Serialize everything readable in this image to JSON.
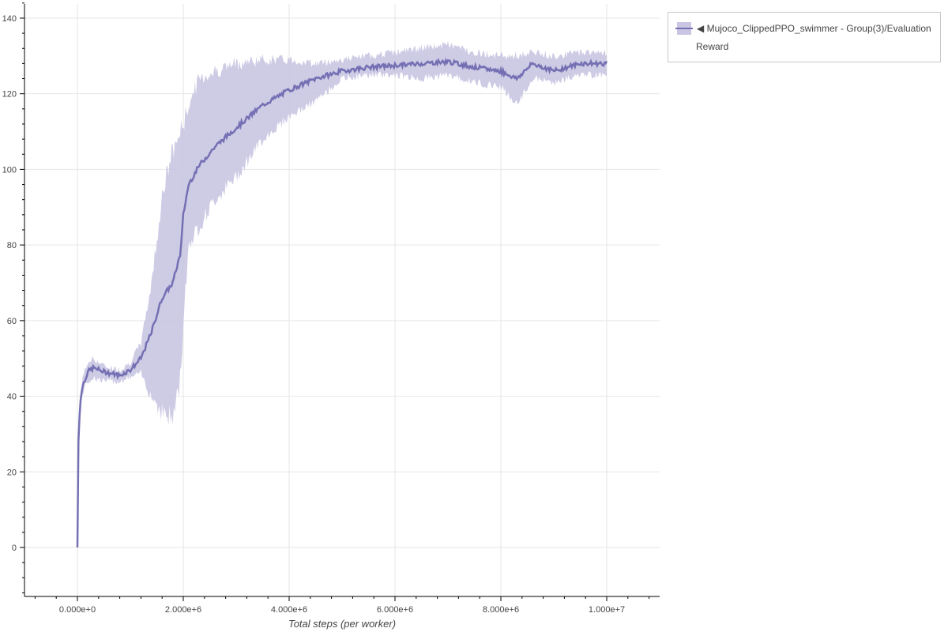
{
  "chart_data": {
    "type": "line",
    "title": "",
    "xlabel": "Total steps (per worker)",
    "ylabel": "",
    "xlim": [
      -1000000,
      11000000
    ],
    "ylim": [
      -13,
      144
    ],
    "grid": true,
    "legend_placement": "outside-top-right",
    "x_ticks": [
      0,
      2000000,
      4000000,
      6000000,
      8000000,
      10000000
    ],
    "x_tick_labels": [
      "0.000e+0",
      "2.000e+6",
      "4.000e+6",
      "6.000e+6",
      "8.000e+6",
      "1.000e+7"
    ],
    "y_ticks": [
      0,
      20,
      40,
      60,
      80,
      100,
      120,
      140
    ],
    "y_tick_labels": [
      "0",
      "20",
      "40",
      "60",
      "80",
      "100",
      "120",
      "140"
    ],
    "series": [
      {
        "name": "Mujoco_ClippedPPO_swimmer - Group(3)/Evaluation Reward",
        "color": "#7570b3",
        "band_color": "#c9c5e2",
        "x": [
          0,
          20000,
          50000,
          100000,
          200000,
          300000,
          500000,
          800000,
          1000000,
          1200000,
          1400000,
          1600000,
          1800000,
          1950000,
          2000000,
          2100000,
          2300000,
          2600000,
          3000000,
          3500000,
          4000000,
          4500000,
          5000000,
          5500000,
          6000000,
          6500000,
          7000000,
          7500000,
          8000000,
          8300000,
          8600000,
          9000000,
          9500000,
          10000000
        ],
        "mean": [
          0,
          28,
          38,
          43,
          46.5,
          47.5,
          46.5,
          45.5,
          47,
          50,
          57,
          66,
          70,
          78,
          88,
          96,
          101,
          106,
          111,
          117,
          121,
          124,
          126,
          127,
          127.5,
          128,
          128.5,
          127,
          126,
          124,
          128,
          126,
          128,
          128
        ],
        "lower": [
          0,
          25,
          36,
          41,
          44,
          45,
          44,
          44,
          45,
          46,
          40,
          36,
          34,
          45,
          60,
          80,
          85,
          92,
          98,
          108,
          114,
          118,
          124,
          125,
          125,
          124,
          125,
          123,
          122,
          117,
          124,
          123,
          125,
          125
        ],
        "upper": [
          0,
          30,
          40,
          45,
          49,
          50,
          48,
          47,
          49,
          54,
          70,
          93,
          105,
          110,
          112,
          117,
          124,
          126,
          128,
          129,
          129,
          128,
          129,
          130,
          131,
          132,
          133,
          131,
          130,
          130,
          131,
          130,
          131,
          131
        ]
      }
    ]
  },
  "legend": {
    "marker": "◀",
    "line1": "Mujoco_ClippedPPO_swimmer - Group(3)/Evaluation",
    "line2": "Reward"
  }
}
